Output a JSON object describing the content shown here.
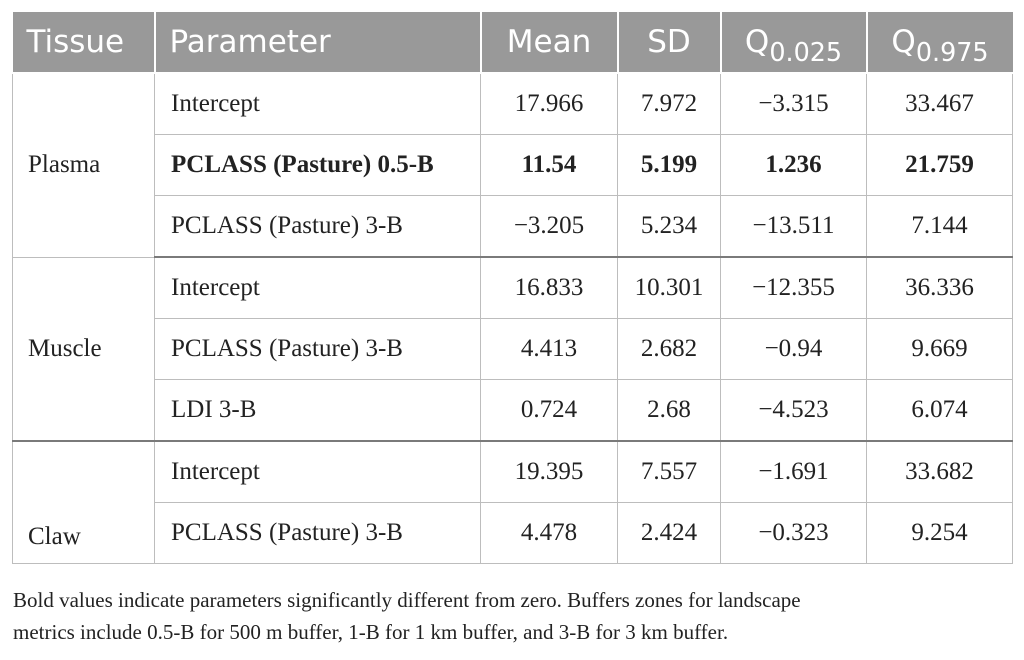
{
  "headers": {
    "tissue": "Tissue",
    "parameter": "Parameter",
    "mean": "Mean",
    "sd": "SD",
    "q_low": {
      "base": "Q",
      "sub": "0.025"
    },
    "q_high": {
      "base": "Q",
      "sub": "0.975"
    }
  },
  "groups": [
    {
      "tissue": "Plasma",
      "rows": [
        {
          "parameter": "Intercept",
          "mean": "17.966",
          "sd": "7.972",
          "q_low": "−3.315",
          "q_high": "33.467",
          "bold": false
        },
        {
          "parameter": "PCLASS (Pasture) 0.5-B",
          "mean": "11.54",
          "sd": "5.199",
          "q_low": "1.236",
          "q_high": "21.759",
          "bold": true
        },
        {
          "parameter": "PCLASS (Pasture) 3-B",
          "mean": "−3.205",
          "sd": "5.234",
          "q_low": "−13.511",
          "q_high": "7.144",
          "bold": false
        }
      ]
    },
    {
      "tissue": "Muscle",
      "rows": [
        {
          "parameter": "Intercept",
          "mean": "16.833",
          "sd": "10.301",
          "q_low": "−12.355",
          "q_high": "36.336",
          "bold": false
        },
        {
          "parameter": "PCLASS (Pasture) 3-B",
          "mean": "4.413",
          "sd": "2.682",
          "q_low": "−0.94",
          "q_high": "9.669",
          "bold": false
        },
        {
          "parameter": "LDI 3-B",
          "mean": "0.724",
          "sd": "2.68",
          "q_low": "−4.523",
          "q_high": "6.074",
          "bold": false
        }
      ]
    },
    {
      "tissue": "Claw",
      "rows": [
        {
          "parameter": "Intercept",
          "mean": "19.395",
          "sd": "7.557",
          "q_low": "−1.691",
          "q_high": "33.682",
          "bold": false
        },
        {
          "parameter": "PCLASS (Pasture) 3-B",
          "mean": "4.478",
          "sd": "2.424",
          "q_low": "−0.323",
          "q_high": "9.254",
          "bold": false
        }
      ]
    }
  ],
  "footnote": {
    "line1": "Bold values indicate parameters significantly different from zero. Buffers zones for landscape",
    "line2": "metrics include 0.5-B for 500 m buffer, 1-B for 1 km buffer, and 3-B for 3 km buffer."
  },
  "colors": {
    "header_bg": "#999999",
    "header_text": "#ffffff",
    "grid": "#bdbdbd"
  }
}
